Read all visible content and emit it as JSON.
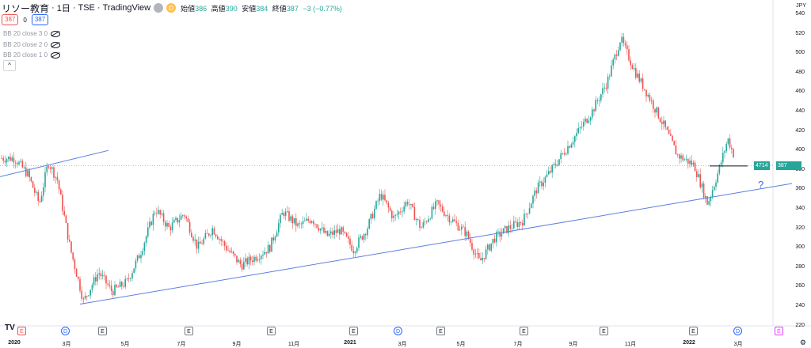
{
  "header": {
    "title": "リソー教育",
    "interval": "1日",
    "exchange": "TSE",
    "source": "TradingView",
    "badge1": "●",
    "badge2": "D",
    "open_label": "始値",
    "open": "386",
    "high_label": "高値",
    "high": "390",
    "low_label": "安値",
    "low": "384",
    "close_label": "終値",
    "close": "387",
    "change": "−3 (−0.77%)"
  },
  "price_boxes": {
    "sell": "387",
    "mid": "0",
    "buy": "387"
  },
  "indicators": [
    "BB 20 close 3 0",
    "BB 20 close 2 0",
    "BB 20 close 1 0"
  ],
  "collapse_label": "^",
  "currency": "JPY",
  "y_axis": [
    "540",
    "520",
    "500",
    "480",
    "460",
    "440",
    "420",
    "400",
    "380",
    "360",
    "340",
    "320",
    "300",
    "280",
    "260",
    "240",
    "220"
  ],
  "x_axis": [
    {
      "label": "2020",
      "bold": true
    },
    {
      "label": "3月",
      "bold": false
    },
    {
      "label": "5月",
      "bold": false
    },
    {
      "label": "7月",
      "bold": false
    },
    {
      "label": "9月",
      "bold": false
    },
    {
      "label": "11月",
      "bold": false
    },
    {
      "label": "2021",
      "bold": true
    },
    {
      "label": "3月",
      "bold": false
    },
    {
      "label": "5月",
      "bold": false
    },
    {
      "label": "7月",
      "bold": false
    },
    {
      "label": "9月",
      "bold": false
    },
    {
      "label": "11月",
      "bold": false
    },
    {
      "label": "2022",
      "bold": true
    },
    {
      "label": "3月",
      "bold": false
    }
  ],
  "current_price": {
    "volume_tag": "4714",
    "price_tag": "387"
  },
  "annotation": "?",
  "events": [
    "E",
    "D",
    "E",
    "E",
    "E",
    "E",
    "D",
    "E",
    "E",
    "E",
    "E",
    "D",
    "E"
  ],
  "chart_data": {
    "type": "candlestick",
    "ylim": [
      220,
      540
    ],
    "price_points": [
      {
        "x": "2020-01",
        "y": 392
      },
      {
        "x": "2020-01",
        "y": 375
      },
      {
        "x": "2020-02",
        "y": 345
      },
      {
        "x": "2020-02",
        "y": 388
      },
      {
        "x": "2020-02",
        "y": 370
      },
      {
        "x": "2020-03",
        "y": 300
      },
      {
        "x": "2020-03",
        "y": 245
      },
      {
        "x": "2020-04",
        "y": 275
      },
      {
        "x": "2020-04",
        "y": 255
      },
      {
        "x": "2020-05",
        "y": 265
      },
      {
        "x": "2020-05",
        "y": 295
      },
      {
        "x": "2020-06",
        "y": 340
      },
      {
        "x": "2020-06",
        "y": 320
      },
      {
        "x": "2020-07",
        "y": 335
      },
      {
        "x": "2020-07",
        "y": 300
      },
      {
        "x": "2020-08",
        "y": 320
      },
      {
        "x": "2020-08",
        "y": 300
      },
      {
        "x": "2020-09",
        "y": 282
      },
      {
        "x": "2020-09",
        "y": 290
      },
      {
        "x": "2020-10",
        "y": 300
      },
      {
        "x": "2020-10",
        "y": 337
      },
      {
        "x": "2020-11",
        "y": 322
      },
      {
        "x": "2020-11",
        "y": 330
      },
      {
        "x": "2020-12",
        "y": 312
      },
      {
        "x": "2020-12",
        "y": 318
      },
      {
        "x": "2021-01",
        "y": 298
      },
      {
        "x": "2021-01",
        "y": 320
      },
      {
        "x": "2021-02",
        "y": 355
      },
      {
        "x": "2021-02",
        "y": 330
      },
      {
        "x": "2021-03",
        "y": 348
      },
      {
        "x": "2021-03",
        "y": 320
      },
      {
        "x": "2021-04",
        "y": 345
      },
      {
        "x": "2021-04",
        "y": 330
      },
      {
        "x": "2021-05",
        "y": 315
      },
      {
        "x": "2021-05",
        "y": 285
      },
      {
        "x": "2021-06",
        "y": 310
      },
      {
        "x": "2021-06",
        "y": 320
      },
      {
        "x": "2021-07",
        "y": 328
      },
      {
        "x": "2021-07",
        "y": 360
      },
      {
        "x": "2021-08",
        "y": 380
      },
      {
        "x": "2021-08",
        "y": 400
      },
      {
        "x": "2021-09",
        "y": 420
      },
      {
        "x": "2021-09",
        "y": 440
      },
      {
        "x": "2021-10",
        "y": 470
      },
      {
        "x": "2021-10",
        "y": 515
      },
      {
        "x": "2021-11",
        "y": 480
      },
      {
        "x": "2021-11",
        "y": 455
      },
      {
        "x": "2021-12",
        "y": 425
      },
      {
        "x": "2021-12",
        "y": 395
      },
      {
        "x": "2022-01",
        "y": 385
      },
      {
        "x": "2022-01",
        "y": 345
      },
      {
        "x": "2022-02",
        "y": 380
      },
      {
        "x": "2022-02",
        "y": 412
      },
      {
        "x": "2022-02",
        "y": 387
      }
    ],
    "trendlines": [
      {
        "name": "upper",
        "x1": "2020-01",
        "y1": 373,
        "x2": "2020-05",
        "y2": 400
      },
      {
        "name": "lower",
        "x1": "2020-03",
        "y1": 242,
        "x2": "2022-04",
        "y2": 366
      },
      {
        "name": "horizontal",
        "x1": "2022-01",
        "y1": 384,
        "x2": "2022-03",
        "y2": 384
      }
    ]
  }
}
